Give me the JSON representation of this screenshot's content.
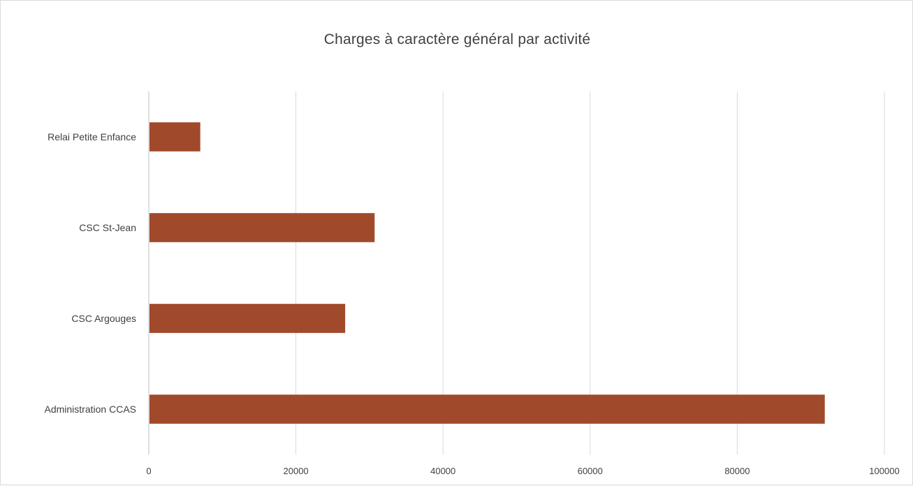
{
  "chart_data": {
    "type": "bar",
    "orientation": "horizontal",
    "title": "Charges à caractère général par activité",
    "categories": [
      "Relai Petite Enfance",
      "CSC St-Jean",
      "CSC Argouges",
      "Administration CCAS"
    ],
    "values": [
      7000,
      30700,
      26700,
      91900
    ],
    "xlim": [
      0,
      100000
    ],
    "xticks": [
      "0",
      "20000",
      "40000",
      "60000",
      "80000",
      "100000"
    ],
    "xtick_values": [
      0,
      20000,
      40000,
      60000,
      80000,
      100000
    ],
    "grid": "vertical",
    "legend": "none",
    "bar_color": "#a0492b"
  }
}
